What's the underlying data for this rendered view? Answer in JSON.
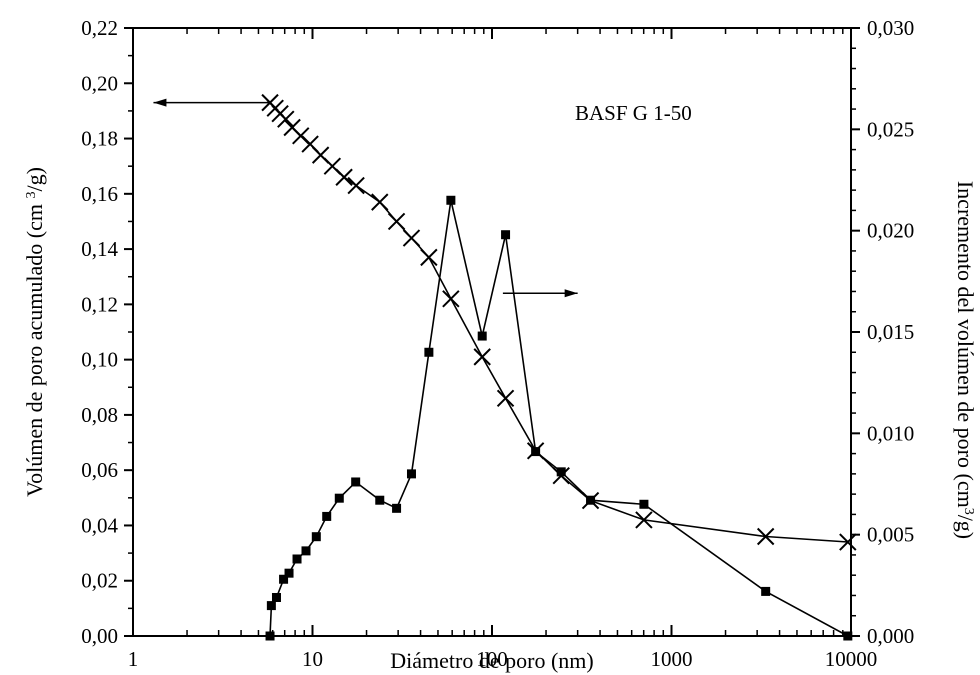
{
  "chart_data": {
    "type": "scatter",
    "annotation": "BASF G 1-50",
    "xlabel": "Diámetro de poro (nm)",
    "ylabel_left_main": "Volúmen de poro acumulado (cm ",
    "ylabel_left_sup": "3",
    "ylabel_left_end": "/g)",
    "ylabel_right_main": "Incremento del volúmen de poro (cm",
    "ylabel_right_sup": "3",
    "ylabel_right_end": "/g)",
    "x_scale": "log",
    "xlim": [
      1,
      10000
    ],
    "ylim_left": [
      0,
      0.22
    ],
    "ylim_right": [
      0,
      0.03
    ],
    "x_ticks": [
      1,
      10,
      100,
      1000,
      10000
    ],
    "x_tick_labels": [
      "1",
      "10",
      "100",
      "1000",
      "10000"
    ],
    "y_left_ticks": [
      0,
      0.02,
      0.04,
      0.06,
      0.08,
      0.1,
      0.12,
      0.14,
      0.16,
      0.18,
      0.2,
      0.22
    ],
    "y_left_tick_labels": [
      "0,00",
      "0,02",
      "0,04",
      "0,06",
      "0,08",
      "0,10",
      "0,12",
      "0,14",
      "0,16",
      "0,18",
      "0,20",
      "0,22"
    ],
    "y_right_ticks": [
      0,
      0.005,
      0.01,
      0.015,
      0.02,
      0.025,
      0.03
    ],
    "y_right_tick_labels": [
      "0,000",
      "0,005",
      "0,010",
      "0,015",
      "0,020",
      "0,025",
      "0,030"
    ],
    "series": [
      {
        "axis": "left",
        "marker": "x",
        "x": [
          5.8,
          6.2,
          6.6,
          7.1,
          7.7,
          8.6,
          9.7,
          11.1,
          12.9,
          15.0,
          17.5,
          23.7,
          29.4,
          35.6,
          44.5,
          59.0,
          88.2,
          119.0,
          175.0,
          243.0,
          354.0,
          702.0,
          3347.0,
          9600.0
        ],
        "y": [
          0.193,
          0.191,
          0.189,
          0.187,
          0.184,
          0.181,
          0.178,
          0.174,
          0.17,
          0.166,
          0.163,
          0.157,
          0.15,
          0.144,
          0.137,
          0.122,
          0.101,
          0.086,
          0.067,
          0.058,
          0.049,
          0.042,
          0.036,
          0.034
        ]
      },
      {
        "axis": "right",
        "marker": "square",
        "x": [
          5.8,
          5.9,
          6.3,
          6.9,
          7.4,
          8.2,
          9.2,
          10.5,
          12.0,
          14.1,
          17.4,
          23.7,
          29.4,
          35.6,
          44.5,
          59.0,
          88.2,
          119.0,
          175.0,
          243.0,
          354.0,
          702.0,
          3347.0,
          9600.0
        ],
        "y": [
          0.0,
          0.0015,
          0.0019,
          0.0028,
          0.0031,
          0.0038,
          0.0042,
          0.0049,
          0.0059,
          0.0068,
          0.0076,
          0.0067,
          0.0063,
          0.008,
          0.014,
          0.0215,
          0.0148,
          0.0198,
          0.0091,
          0.0081,
          0.0067,
          0.0065,
          0.0022,
          0.0
        ]
      }
    ],
    "arrows": [
      {
        "direction": "left",
        "from_x": 5.8,
        "to_x": 1.3,
        "y_left": 0.193
      },
      {
        "direction": "right",
        "from_x": 115.0,
        "to_x": 300.0,
        "y_left": 0.124
      }
    ]
  }
}
